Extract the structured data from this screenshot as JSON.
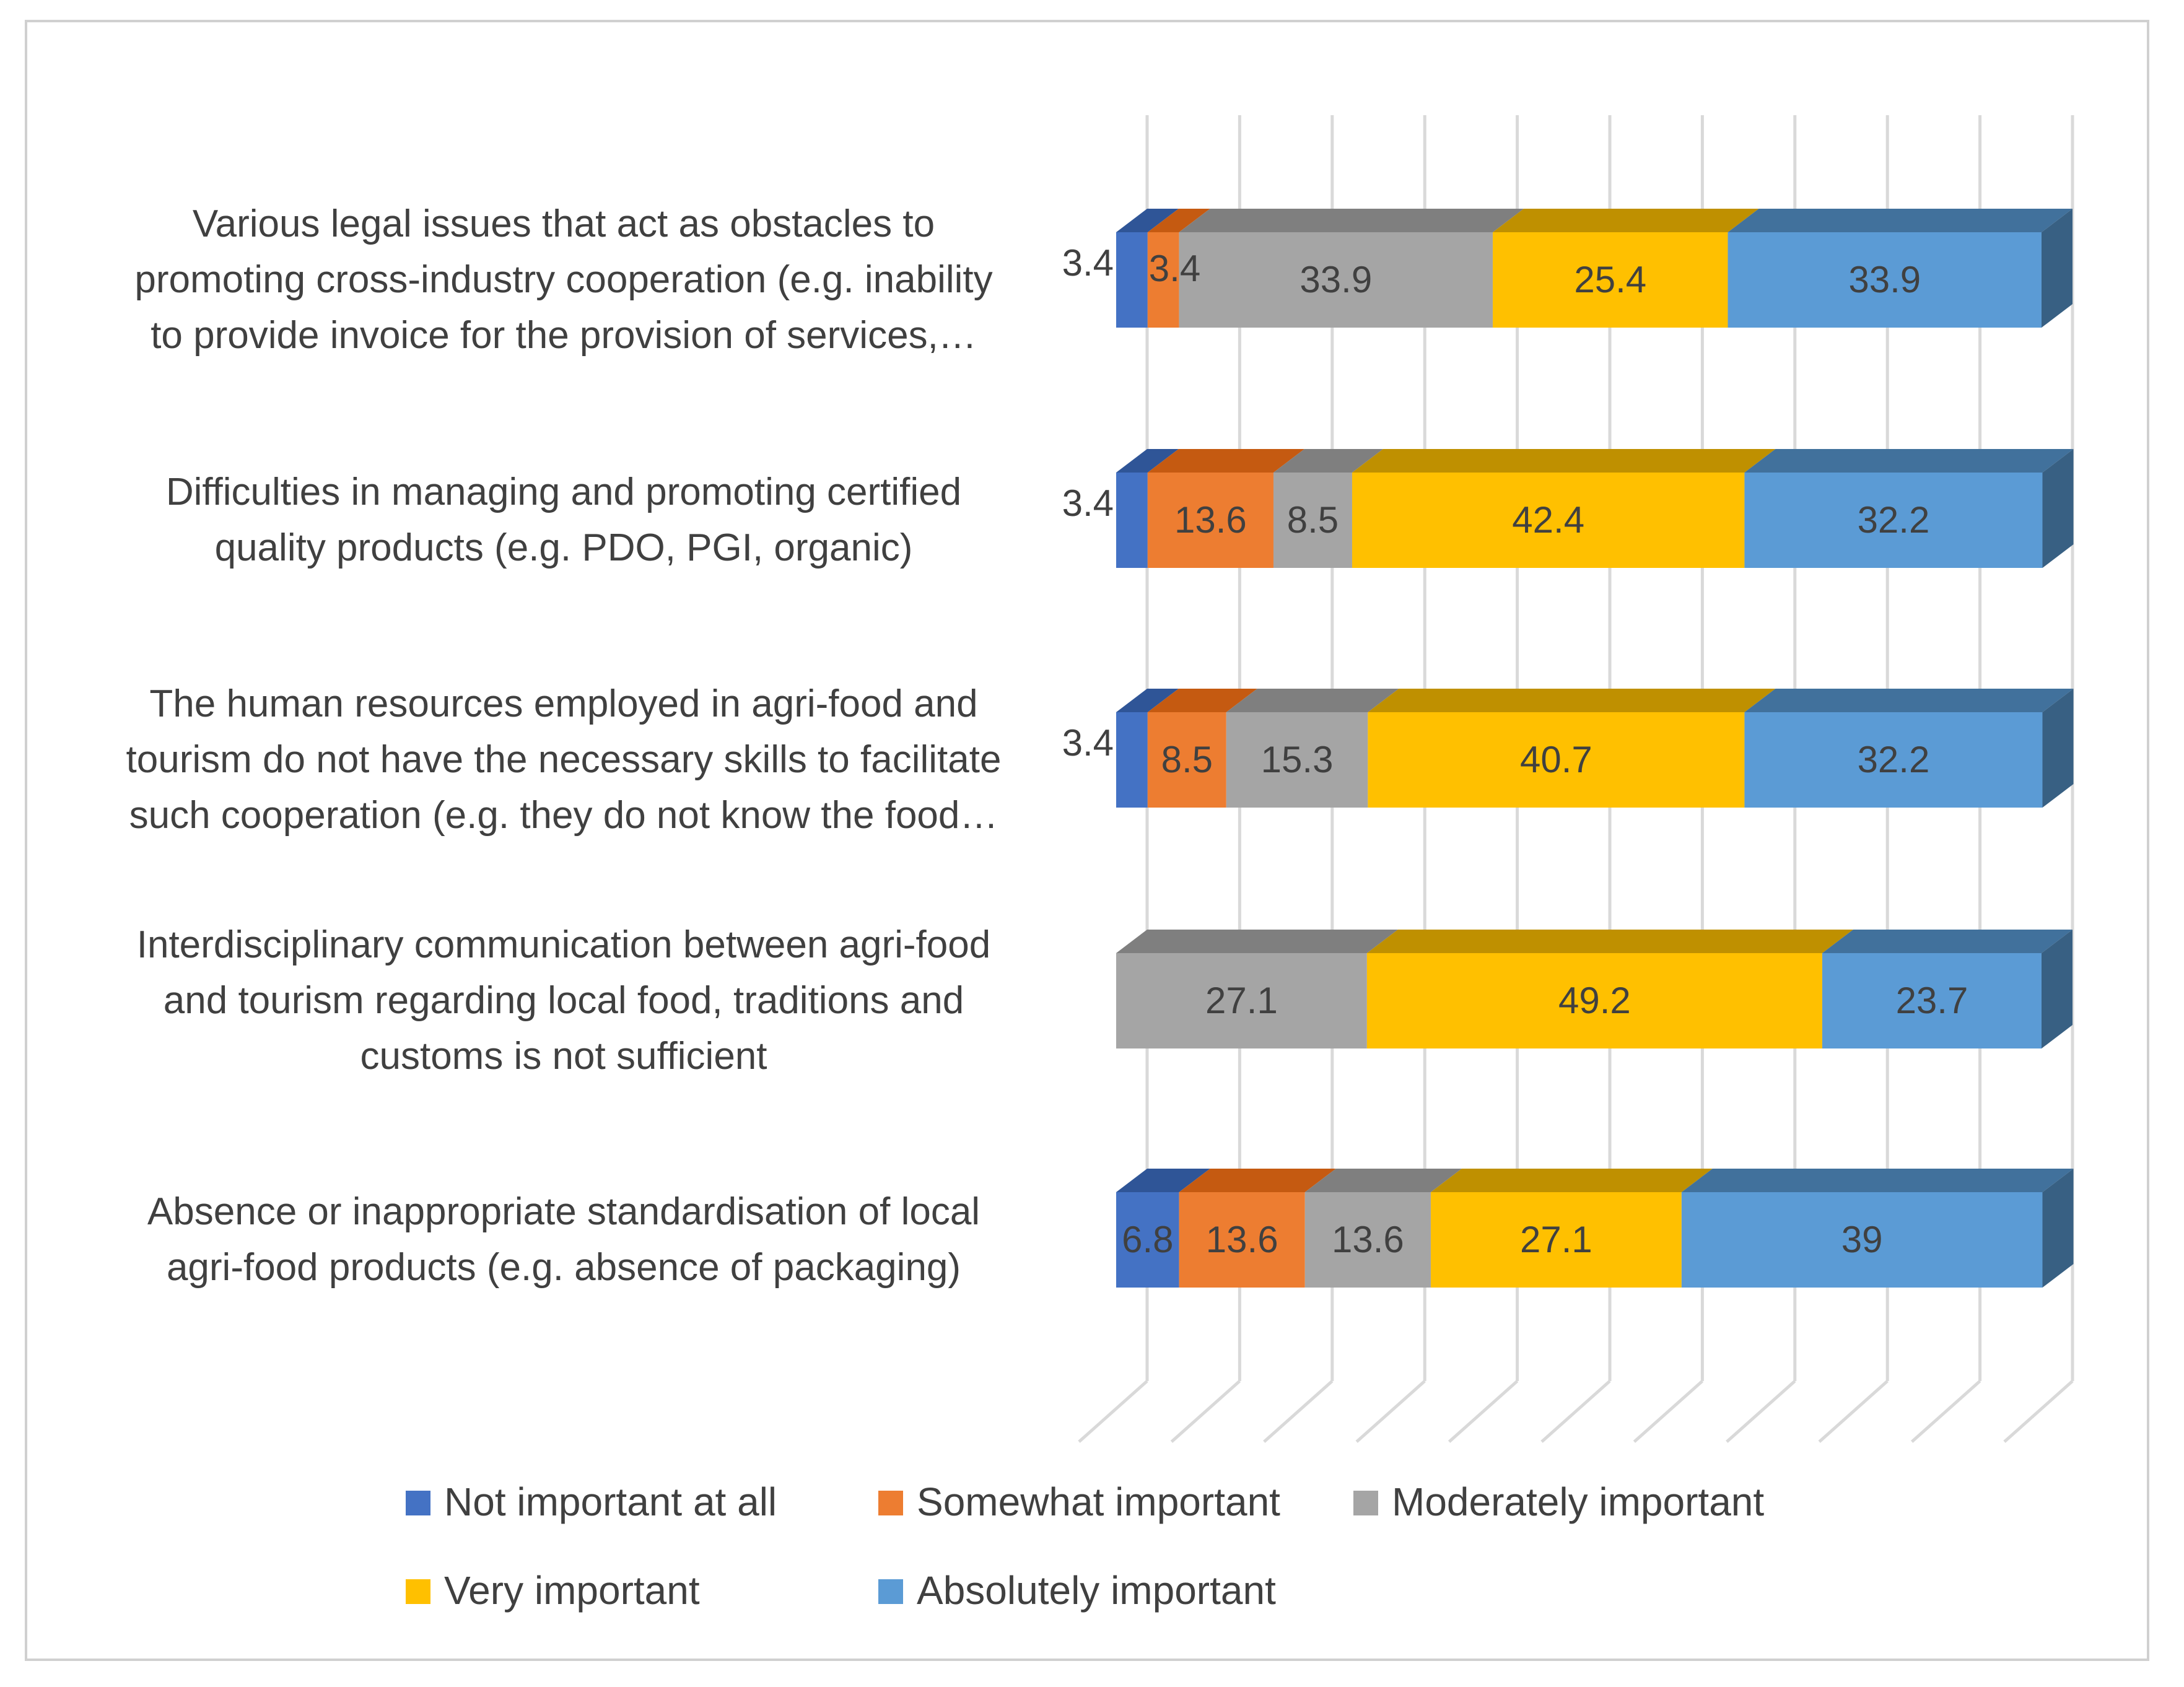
{
  "chart_data": {
    "type": "bar",
    "orientation": "horizontal",
    "stacked": "100%",
    "style": "3d",
    "categories": [
      [
        "Various legal issues that act as obstacles to",
        "promoting cross-industry cooperation (e.g. inability",
        "to provide invoice for the provision of services,…"
      ],
      [
        "Difficulties in managing and promoting certified",
        "quality products (e.g. PDO, PGI, organic)"
      ],
      [
        "The human resources employed in agri-food and",
        "tourism do not have the necessary skills to facilitate",
        "such cooperation (e.g. they do not know the food…"
      ],
      [
        "Interdisciplinary communication between agri-food",
        "and tourism regarding local food, traditions and",
        "customs is not sufficient"
      ],
      [
        "Absence or inappropriate standardisation of local",
        "agri-food products (e.g. absence of packaging)"
      ]
    ],
    "series": [
      {
        "name": "Not important at all",
        "color": "#4472C4",
        "top_color": "#2F5597",
        "side_color": "#2F5597",
        "values": [
          3.4,
          3.4,
          3.4,
          0,
          6.8
        ],
        "labels": [
          "3.4",
          "3.4",
          "3.4",
          "",
          "6.8"
        ]
      },
      {
        "name": "Somewhat important",
        "color": "#ED7D31",
        "top_color": "#C55A11",
        "side_color": "#C55A11",
        "values": [
          3.4,
          13.6,
          8.5,
          0,
          13.6
        ],
        "labels": [
          "3.4",
          "13.6",
          "8.5",
          "",
          "13.6"
        ]
      },
      {
        "name": "Moderately important",
        "color": "#A5A5A5",
        "top_color": "#7F7F7F",
        "side_color": "#7F7F7F",
        "values": [
          33.9,
          8.5,
          15.3,
          27.1,
          13.6
        ],
        "labels": [
          "33.9",
          "8.5",
          "15.3",
          "27.1",
          "13.6"
        ]
      },
      {
        "name": "Very important",
        "color": "#FFC000",
        "top_color": "#BF9000",
        "side_color": "#BF9000",
        "values": [
          25.4,
          42.4,
          40.7,
          49.2,
          27.1
        ],
        "labels": [
          "25.4",
          "42.4",
          "40.7",
          "49.2",
          "27.1"
        ]
      },
      {
        "name": "Absolutely important",
        "color": "#5B9BD5",
        "top_color": "#41719C",
        "side_color": "#386083",
        "values": [
          33.9,
          32.2,
          32.2,
          23.7,
          39
        ],
        "labels": [
          "33.9",
          "32.2",
          "32.2",
          "23.7",
          "39"
        ]
      }
    ],
    "xlim": [
      0,
      100
    ],
    "gridlines": true,
    "legend_position": "bottom"
  }
}
